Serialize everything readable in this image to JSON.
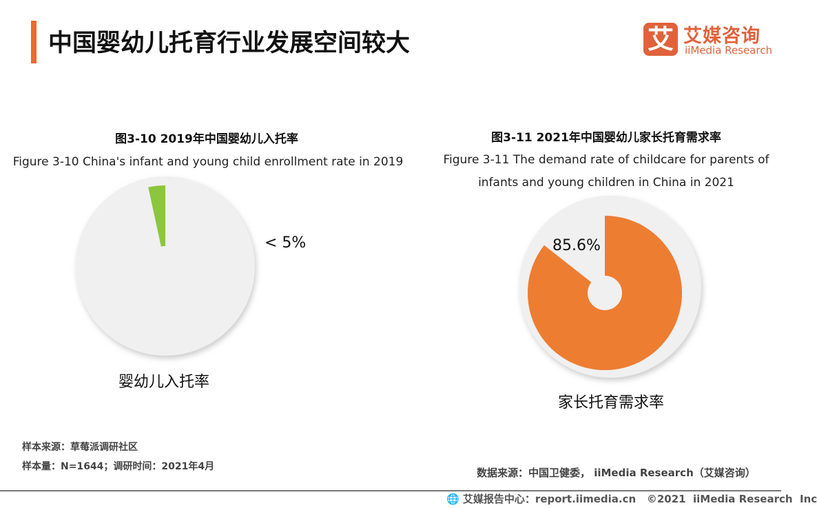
{
  "header": {
    "title": "中国婴幼儿托育行业发展空间较大",
    "logo_mark": "艾",
    "logo_cn": "艾媒咨询",
    "logo_en": "iiMedia Research"
  },
  "chart_data": [
    {
      "type": "pie",
      "title": "图3-10 2019年中国婴幼儿入托率",
      "subtitle": "Figure 3-10 China's infant and young child enrollment rate in 2019",
      "values": [
        4,
        96
      ],
      "data_label": "< 5%",
      "xlabel": "婴幼儿入托率",
      "colors": [
        "#8cc63f",
        "#f0f0f0"
      ]
    },
    {
      "type": "pie",
      "title": "图3-11 2021年中国婴幼儿家长托育需求率",
      "subtitle": "Figure 3-11 The demand rate of childcare for parents of infants and young children in China in 2021",
      "values": [
        85.6,
        14.4
      ],
      "data_label": "85.6%",
      "xlabel": "家长托育需求率",
      "colors": [
        "#ed7d31",
        "#f0f0f0"
      ]
    }
  ],
  "notes": {
    "sample_source": "样本来源：草莓派调研社区",
    "sample_size": "样本量：N=1644；调研时间：2021年4月",
    "data_source": "数据来源：中国卫健委， iiMedia Research（艾媒咨询）"
  },
  "footer": {
    "text": "艾媒报告中心：report.iimedia.cn   ©2021  iiMedia Research  Inc",
    "icon": "globe-icon"
  }
}
